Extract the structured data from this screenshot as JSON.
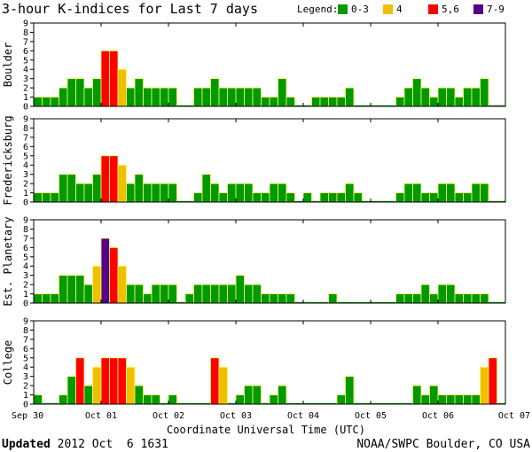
{
  "chart_data": {
    "type": "bar",
    "title": "3-hour K-indices for Last 7 days",
    "xlabel": "Coordinate Universal Time (UTC)",
    "x_tick_labels": [
      "Sep 30",
      "Oct 01",
      "Oct 02",
      "Oct 03",
      "Oct 04",
      "Oct 05",
      "Oct 06",
      "Oct 07"
    ],
    "ylim": [
      0,
      9
    ],
    "y_ticks": [
      0,
      1,
      2,
      3,
      4,
      5,
      6,
      7,
      8,
      9
    ],
    "legend": {
      "label": "Legend:",
      "placement": "top-right",
      "items": [
        {
          "label": "0-3",
          "color": "#009900"
        },
        {
          "label": "4",
          "color": "#f0c000"
        },
        {
          "label": "5,6",
          "color": "#ff0000"
        },
        {
          "label": "7-9",
          "color": "#550088"
        }
      ]
    },
    "panels": [
      {
        "name": "Boulder",
        "values": [
          1,
          1,
          1,
          2,
          3,
          3,
          2,
          3,
          6,
          6,
          4,
          2,
          3,
          2,
          2,
          2,
          2,
          0,
          0,
          2,
          2,
          3,
          2,
          2,
          2,
          2,
          2,
          1,
          1,
          3,
          1,
          0,
          0,
          1,
          1,
          1,
          1,
          2,
          0,
          0,
          0,
          0,
          0,
          1,
          2,
          3,
          2,
          1,
          2,
          2,
          1,
          2,
          2,
          3,
          0,
          0
        ]
      },
      {
        "name": "Fredericksburg",
        "values": [
          1,
          1,
          1,
          3,
          3,
          2,
          2,
          3,
          5,
          5,
          4,
          2,
          3,
          2,
          2,
          2,
          2,
          0,
          0,
          1,
          3,
          2,
          1,
          2,
          2,
          2,
          1,
          1,
          2,
          2,
          1,
          0,
          1,
          0,
          1,
          1,
          1,
          2,
          1,
          0,
          0,
          0,
          0,
          1,
          2,
          2,
          1,
          1,
          2,
          2,
          1,
          1,
          2,
          2,
          0,
          0
        ]
      },
      {
        "name": "Est. Planetary",
        "values": [
          1,
          1,
          1,
          3,
          3,
          3,
          2,
          4,
          7,
          6,
          4,
          2,
          2,
          1,
          2,
          2,
          2,
          0,
          1,
          2,
          2,
          2,
          2,
          2,
          3,
          2,
          2,
          1,
          1,
          1,
          1,
          0,
          0,
          0,
          0,
          1,
          0,
          0,
          0,
          0,
          0,
          0,
          0,
          1,
          1,
          1,
          2,
          1,
          2,
          2,
          1,
          1,
          1,
          1,
          0,
          0
        ]
      },
      {
        "name": "College",
        "values": [
          1,
          0,
          0,
          1,
          3,
          5,
          2,
          4,
          5,
          5,
          5,
          4,
          2,
          1,
          1,
          0,
          1,
          0,
          0,
          0,
          0,
          5,
          4,
          0,
          1,
          2,
          2,
          0,
          1,
          2,
          0,
          0,
          0,
          0,
          0,
          0,
          1,
          3,
          0,
          0,
          0,
          0,
          0,
          0,
          0,
          2,
          1,
          2,
          1,
          1,
          1,
          1,
          1,
          4,
          5,
          0
        ]
      }
    ]
  },
  "footer": {
    "updated_label": "Updated",
    "updated_value": "2012 Oct  6 1631",
    "credit": "NOAA/SWPC Boulder, CO USA"
  }
}
